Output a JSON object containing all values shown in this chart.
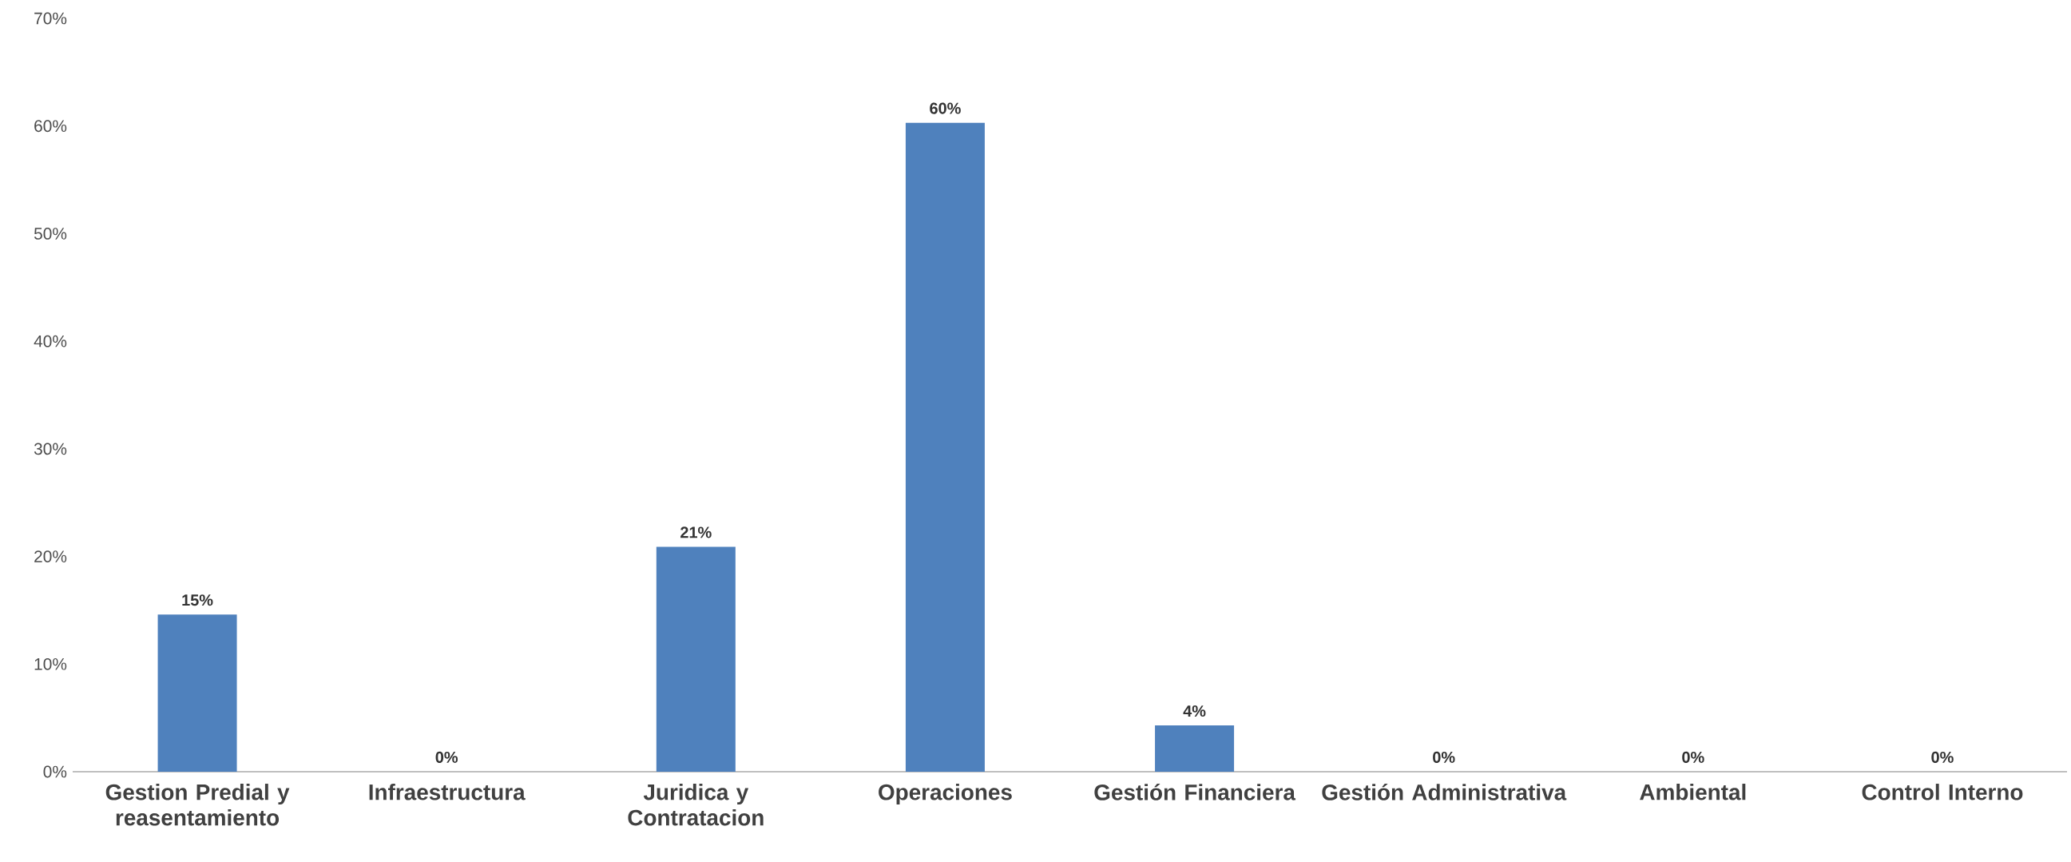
{
  "chart_data": {
    "type": "bar",
    "categories": [
      "Gestion Predial y reasentamiento",
      "Infraestructura",
      "Juridica y Contratacion",
      "Operaciones",
      "Gestión Financiera",
      "Gestión Administrativa",
      "Ambiental",
      "Control Interno"
    ],
    "values": [
      14.6,
      0,
      20.9,
      60.3,
      4.3,
      0,
      0,
      0
    ],
    "value_labels": [
      "15%",
      "0%",
      "21%",
      "60%",
      "4%",
      "0%",
      "0%",
      "0%"
    ],
    "color": "#4f81bd",
    "ylim": [
      0,
      70
    ],
    "yticks": [
      {
        "value": 0,
        "label": "0%"
      },
      {
        "value": 10,
        "label": "10%"
      },
      {
        "value": 20,
        "label": "20%"
      },
      {
        "value": 30,
        "label": "30%"
      },
      {
        "value": 40,
        "label": "40%"
      },
      {
        "value": 50,
        "label": "50%"
      },
      {
        "value": 60,
        "label": "60%"
      },
      {
        "value": 70,
        "label": "70%"
      }
    ]
  }
}
